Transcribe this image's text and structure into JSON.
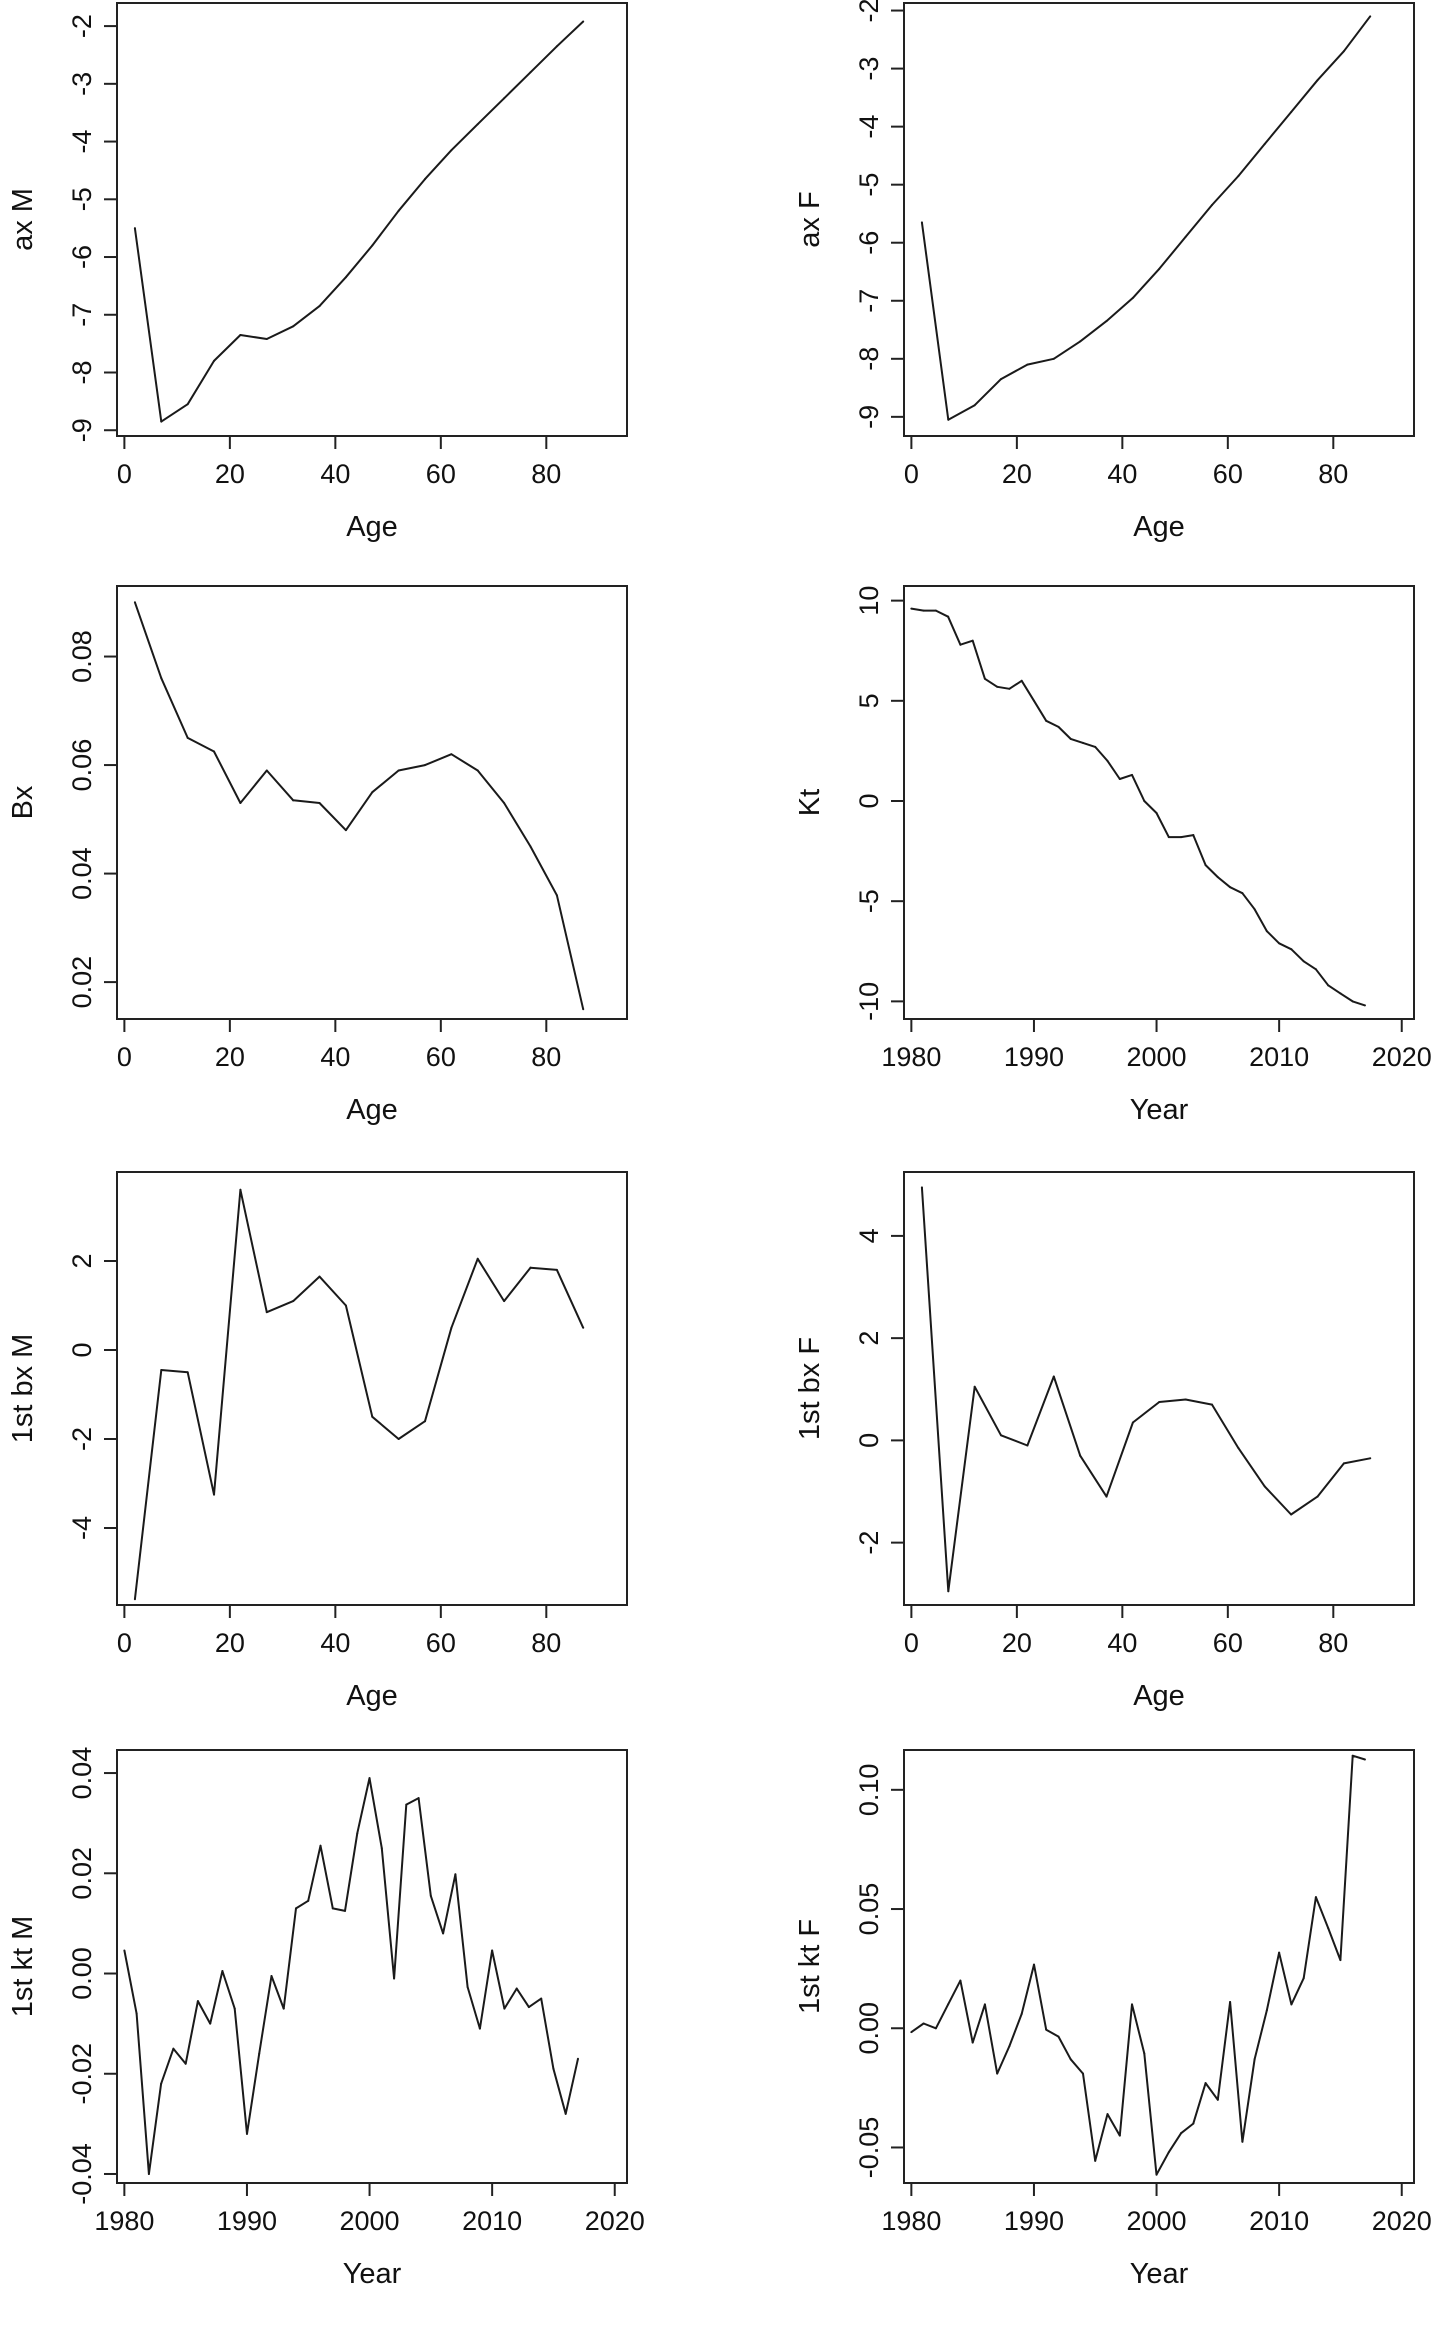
{
  "colors": {
    "line": "#1a1a1a",
    "axis": "#222222",
    "background": "#ffffff"
  },
  "chart_data": [
    {
      "type": "line",
      "xlabel": "Age",
      "ylabel": "ax M",
      "xlim": [
        -1.4,
        95.3
      ],
      "ylim": [
        -9.1,
        -1.6
      ],
      "xticks": [
        0,
        20,
        40,
        60,
        80
      ],
      "xtick_labels": [
        "0",
        "20",
        "40",
        "60",
        "80"
      ],
      "yticks": [
        -9,
        -8,
        -7,
        -6,
        -5,
        -4,
        -3,
        -2
      ],
      "ytick_labels": [
        "-9",
        "-8",
        "-7",
        "-6",
        "-5",
        "-4",
        "-3",
        "-2"
      ],
      "x": [
        2,
        7,
        12,
        17,
        22,
        27,
        32,
        37,
        42,
        47,
        52,
        57,
        62,
        67,
        72,
        77,
        82,
        87
      ],
      "y": [
        -5.5,
        -8.85,
        -8.55,
        -7.8,
        -7.35,
        -7.42,
        -7.2,
        -6.85,
        -6.35,
        -5.8,
        -5.2,
        -4.65,
        -4.15,
        -3.7,
        -3.25,
        -2.8,
        -2.35,
        -1.92
      ]
    },
    {
      "type": "line",
      "xlabel": "Age",
      "ylabel": "ax F",
      "xlim": [
        -1.4,
        95.3
      ],
      "ylim": [
        -9.33,
        -1.87
      ],
      "xticks": [
        0,
        20,
        40,
        60,
        80
      ],
      "xtick_labels": [
        "0",
        "20",
        "40",
        "60",
        "80"
      ],
      "yticks": [
        -9,
        -8,
        -7,
        -6,
        -5,
        -4,
        -3,
        -2
      ],
      "ytick_labels": [
        "-9",
        "-8",
        "-7",
        "-6",
        "-5",
        "-4",
        "-3",
        "-2"
      ],
      "x": [
        2,
        7,
        12,
        17,
        22,
        27,
        32,
        37,
        42,
        47,
        52,
        57,
        62,
        67,
        72,
        77,
        82,
        87
      ],
      "y": [
        -5.65,
        -9.05,
        -8.8,
        -8.35,
        -8.1,
        -8.0,
        -7.7,
        -7.35,
        -6.95,
        -6.45,
        -5.9,
        -5.35,
        -4.85,
        -4.3,
        -3.75,
        -3.2,
        -2.7,
        -2.1
      ]
    },
    {
      "type": "line",
      "xlabel": "Age",
      "ylabel": "Bx",
      "xlim": [
        -1.4,
        95.3
      ],
      "ylim": [
        0.0132,
        0.093
      ],
      "xticks": [
        0,
        20,
        40,
        60,
        80
      ],
      "xtick_labels": [
        "0",
        "20",
        "40",
        "60",
        "80"
      ],
      "yticks": [
        0.02,
        0.04,
        0.06,
        0.08
      ],
      "ytick_labels": [
        "0.02",
        "0.04",
        "0.06",
        "0.08"
      ],
      "x": [
        2,
        7,
        12,
        17,
        22,
        27,
        32,
        37,
        42,
        47,
        52,
        57,
        62,
        67,
        72,
        77,
        82,
        87
      ],
      "y": [
        0.09,
        0.076,
        0.065,
        0.0625,
        0.053,
        0.059,
        0.0535,
        0.053,
        0.048,
        0.055,
        0.059,
        0.06,
        0.062,
        0.059,
        0.053,
        0.045,
        0.036,
        0.015
      ]
    },
    {
      "type": "line",
      "xlabel": "Year",
      "ylabel": "Kt",
      "xlim": [
        1979.4,
        2021.0
      ],
      "ylim": [
        -10.88,
        10.73
      ],
      "xticks": [
        1980,
        1990,
        2000,
        2010,
        2020
      ],
      "xtick_labels": [
        "1980",
        "1990",
        "2000",
        "2010",
        "2020"
      ],
      "yticks": [
        -10,
        -5,
        0,
        5,
        10
      ],
      "ytick_labels": [
        "-10",
        "-5",
        "0",
        "5",
        "10"
      ],
      "x": [
        1980,
        1981,
        1982,
        1983,
        1984,
        1985,
        1986,
        1987,
        1988,
        1989,
        1990,
        1991,
        1992,
        1993,
        1994,
        1995,
        1996,
        1997,
        1998,
        1999,
        2000,
        2001,
        2002,
        2003,
        2004,
        2005,
        2006,
        2007,
        2008,
        2009,
        2010,
        2011,
        2012,
        2013,
        2014,
        2015,
        2016,
        2017
      ],
      "y": [
        9.6,
        9.5,
        9.5,
        9.2,
        7.8,
        8.0,
        6.1,
        5.7,
        5.6,
        6.0,
        5.0,
        4.0,
        3.7,
        3.1,
        2.9,
        2.7,
        2.0,
        1.1,
        1.3,
        0.0,
        -0.6,
        -1.8,
        -1.8,
        -1.7,
        -3.2,
        -3.8,
        -4.3,
        -4.6,
        -5.4,
        -6.5,
        -7.1,
        -7.4,
        -8.0,
        -8.4,
        -9.2,
        -9.6,
        -10.0,
        -10.2
      ]
    },
    {
      "type": "line",
      "xlabel": "Age",
      "ylabel": "1st bx M",
      "xlim": [
        -1.4,
        95.3
      ],
      "ylim": [
        -5.73,
        4.0
      ],
      "xticks": [
        0,
        20,
        40,
        60,
        80
      ],
      "xtick_labels": [
        "0",
        "20",
        "40",
        "60",
        "80"
      ],
      "yticks": [
        -4,
        -2,
        0,
        2
      ],
      "ytick_labels": [
        "-4",
        "-2",
        "0",
        "2"
      ],
      "x": [
        2,
        7,
        12,
        17,
        22,
        27,
        32,
        37,
        42,
        47,
        52,
        57,
        62,
        67,
        72,
        77,
        82,
        87
      ],
      "y": [
        -5.6,
        -0.45,
        -0.5,
        -3.25,
        3.6,
        0.85,
        1.1,
        1.65,
        1.0,
        -1.5,
        -2.0,
        -1.6,
        0.5,
        2.05,
        1.1,
        1.85,
        1.8,
        0.5
      ]
    },
    {
      "type": "line",
      "xlabel": "Age",
      "ylabel": "1st bx F",
      "xlim": [
        -1.4,
        95.3
      ],
      "ylim": [
        -3.22,
        5.25
      ],
      "xticks": [
        0,
        20,
        40,
        60,
        80
      ],
      "xtick_labels": [
        "0",
        "20",
        "40",
        "60",
        "80"
      ],
      "yticks": [
        -2,
        0,
        2,
        4
      ],
      "ytick_labels": [
        "-2",
        "0",
        "2",
        "4"
      ],
      "x": [
        2,
        7,
        12,
        17,
        22,
        27,
        32,
        37,
        42,
        47,
        52,
        57,
        62,
        67,
        72,
        77,
        82,
        87
      ],
      "y": [
        4.95,
        -2.95,
        1.05,
        0.1,
        -0.1,
        1.25,
        -0.3,
        -1.1,
        0.35,
        0.75,
        0.8,
        0.7,
        -0.15,
        -0.9,
        -1.45,
        -1.1,
        -0.45,
        -0.35
      ]
    },
    {
      "type": "line",
      "xlabel": "Year",
      "ylabel": "1st kt M",
      "xlim": [
        1979.4,
        2021.0
      ],
      "ylim": [
        -0.0418,
        0.0446
      ],
      "xticks": [
        1980,
        1990,
        2000,
        2010,
        2020
      ],
      "xtick_labels": [
        "1980",
        "1990",
        "2000",
        "2010",
        "2020"
      ],
      "yticks": [
        -0.04,
        -0.02,
        0.0,
        0.02,
        0.04
      ],
      "ytick_labels": [
        "-0.04",
        "-0.02",
        "0.00",
        "0.02",
        "0.04"
      ],
      "x": [
        1980,
        1981,
        1982,
        1983,
        1984,
        1985,
        1986,
        1987,
        1988,
        1989,
        1990,
        1991,
        1992,
        1993,
        1994,
        1995,
        1996,
        1997,
        1998,
        1999,
        2000,
        2001,
        2002,
        2003,
        2004,
        2005,
        2006,
        2007,
        2008,
        2009,
        2010,
        2011,
        2012,
        2013,
        2014,
        2015,
        2016,
        2017
      ],
      "y": [
        0.0046,
        -0.008,
        -0.04,
        -0.022,
        -0.015,
        -0.018,
        -0.0055,
        -0.01,
        0.0005,
        -0.007,
        -0.032,
        -0.016,
        -0.0005,
        -0.007,
        0.013,
        0.0145,
        0.0255,
        0.013,
        0.0125,
        0.028,
        0.039,
        0.025,
        -0.001,
        0.0337,
        0.035,
        0.0155,
        0.008,
        0.0198,
        -0.0027,
        -0.011,
        0.0046,
        -0.007,
        -0.003,
        -0.0067,
        -0.005,
        -0.019,
        -0.028,
        -0.017
      ]
    },
    {
      "type": "line",
      "xlabel": "Year",
      "ylabel": "1st kt F",
      "xlim": [
        1979.4,
        2021.0
      ],
      "ylim": [
        -0.0649,
        0.1167
      ],
      "xticks": [
        1980,
        1990,
        2000,
        2010,
        2020
      ],
      "xtick_labels": [
        "1980",
        "1990",
        "2000",
        "2010",
        "2020"
      ],
      "yticks": [
        -0.05,
        0.0,
        0.05,
        0.1
      ],
      "ytick_labels": [
        "-0.05",
        "0.00",
        "0.05",
        "0.10"
      ],
      "x": [
        1980,
        1981,
        1982,
        1983,
        1984,
        1985,
        1986,
        1987,
        1988,
        1989,
        1990,
        1991,
        1992,
        1993,
        1994,
        1995,
        1996,
        1997,
        1998,
        1999,
        2000,
        2001,
        2002,
        2003,
        2004,
        2005,
        2006,
        2007,
        2008,
        2009,
        2010,
        2011,
        2012,
        2013,
        2014,
        2015,
        2016,
        2017
      ],
      "y": [
        -0.0016,
        0.002,
        0.0,
        0.01,
        0.02,
        -0.006,
        0.01,
        -0.019,
        -0.0075,
        0.006,
        0.0267,
        -0.0006,
        -0.0035,
        -0.013,
        -0.019,
        -0.0556,
        -0.036,
        -0.045,
        0.01,
        -0.0106,
        -0.0614,
        -0.052,
        -0.044,
        -0.04,
        -0.023,
        -0.03,
        0.011,
        -0.0476,
        -0.013,
        0.0076,
        0.0317,
        0.01,
        0.021,
        0.055,
        0.042,
        0.0286,
        0.1143,
        0.1127
      ]
    }
  ]
}
